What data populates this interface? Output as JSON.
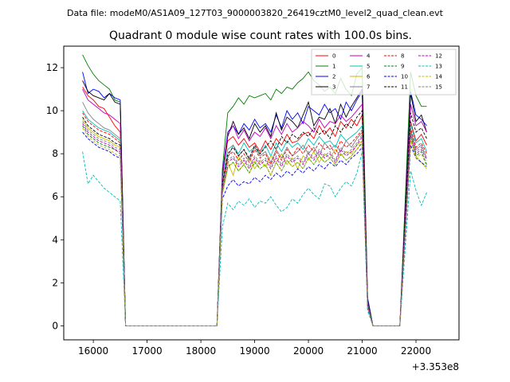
{
  "chart_data": {
    "type": "line",
    "suptitle": "Data file: modeM0/AS1A09_127T03_9000003820_26419cztM0_level2_quad_clean.evt",
    "title": "Quadrant 0 module wise count rates with 100.0s bins.",
    "xlabel": "",
    "ylabel": "",
    "x_offset_label": "+3.353e8",
    "xlim": [
      15450,
      22800
    ],
    "ylim": [
      -0.65,
      13.0
    ],
    "xticks": [
      16000,
      17000,
      18000,
      19000,
      20000,
      21000,
      22000
    ],
    "xtick_labels": [
      "16000",
      "17000",
      "18000",
      "19000",
      "20000",
      "21000",
      "22000"
    ],
    "yticks": [
      0,
      2,
      4,
      6,
      8,
      10,
      12
    ],
    "ytick_labels": [
      "0",
      "2",
      "4",
      "6",
      "8",
      "10",
      "12"
    ],
    "grid": false,
    "legend_location": "top-right",
    "segments": [
      {
        "x_start": 15800,
        "step": 100,
        "count": 8
      },
      {
        "x_start": 16600,
        "step": 100,
        "count": 1
      },
      {
        "x_start": 16700,
        "step": 100,
        "count": 17
      },
      {
        "x_start": 18400,
        "step": 100,
        "count": 27
      },
      {
        "x_start": 21100,
        "step": 100,
        "count": 7
      },
      {
        "x_start": 21900,
        "step": 100,
        "count": 1
      },
      {
        "x_start": 22000,
        "step": 100,
        "count": 3
      }
    ],
    "series": [
      {
        "name": "0",
        "color": "#ff0000",
        "dash": "solid",
        "values": [
          11.1,
          10.7,
          10.5,
          10.2,
          10.1,
          9.7,
          9.3,
          9.0,
          0.0,
          0.0,
          0.0,
          0.0,
          0.0,
          0.0,
          0.0,
          0.0,
          0.0,
          0.0,
          0.0,
          0.0,
          0.0,
          0.0,
          0.0,
          0.0,
          0.0,
          0.0,
          7.0,
          8.6,
          8.8,
          8.4,
          8.7,
          8.3,
          8.5,
          8.1,
          8.6,
          8.2,
          8.7,
          8.4,
          8.9,
          8.5,
          8.6,
          8.9,
          9.0,
          8.7,
          9.3,
          8.9,
          9.2,
          8.8,
          9.5,
          9.2,
          9.6,
          9.3,
          9.8,
          1.0,
          0.0,
          0.0,
          0.0,
          0.0,
          0.0,
          0.0,
          9.5,
          8.6,
          8.9,
          8.4
        ]
      },
      {
        "name": "1",
        "color": "#008000",
        "dash": "solid",
        "values": [
          12.6,
          12.1,
          11.7,
          11.4,
          11.2,
          11.0,
          10.5,
          10.4,
          0.0,
          0.0,
          0.0,
          0.0,
          0.0,
          0.0,
          0.0,
          0.0,
          0.0,
          0.0,
          0.0,
          0.0,
          0.0,
          0.0,
          0.0,
          0.0,
          0.0,
          0.0,
          7.3,
          9.9,
          10.2,
          10.6,
          10.3,
          10.7,
          10.6,
          10.7,
          10.8,
          10.5,
          11.0,
          10.8,
          11.1,
          11.0,
          11.3,
          11.5,
          11.8,
          11.4,
          11.2,
          10.9,
          11.1,
          10.8,
          11.5,
          11.0,
          10.7,
          11.7,
          12.0,
          1.3,
          0.0,
          0.0,
          0.0,
          0.0,
          0.0,
          0.0,
          11.8,
          10.7,
          10.2,
          10.2
        ]
      },
      {
        "name": "2",
        "color": "#0000ff",
        "dash": "solid",
        "values": [
          11.8,
          10.8,
          11.0,
          10.9,
          10.6,
          10.8,
          10.6,
          10.5,
          0.0,
          0.0,
          0.0,
          0.0,
          0.0,
          0.0,
          0.0,
          0.0,
          0.0,
          0.0,
          0.0,
          0.0,
          0.0,
          0.0,
          0.0,
          0.0,
          0.0,
          0.0,
          7.1,
          9.0,
          9.3,
          8.9,
          9.4,
          9.1,
          9.6,
          9.2,
          9.4,
          9.0,
          9.8,
          9.2,
          10.0,
          9.6,
          9.9,
          9.4,
          10.2,
          10.0,
          9.8,
          10.3,
          9.9,
          10.1,
          9.6,
          10.4,
          10.0,
          10.5,
          10.9,
          1.3,
          0.0,
          0.0,
          0.0,
          0.0,
          0.0,
          0.0,
          10.9,
          9.8,
          9.6,
          9.3
        ]
      },
      {
        "name": "3",
        "color": "#000000",
        "dash": "solid",
        "values": [
          11.4,
          10.9,
          10.7,
          10.6,
          10.5,
          10.8,
          10.4,
          10.3,
          0.0,
          0.0,
          0.0,
          0.0,
          0.0,
          0.0,
          0.0,
          0.0,
          0.0,
          0.0,
          0.0,
          0.0,
          0.0,
          0.0,
          0.0,
          0.0,
          0.0,
          0.0,
          6.9,
          8.8,
          9.5,
          8.9,
          9.2,
          8.7,
          9.4,
          9.0,
          9.3,
          8.8,
          9.9,
          9.1,
          9.7,
          9.5,
          9.2,
          9.8,
          10.4,
          9.3,
          9.7,
          9.6,
          10.1,
          9.4,
          10.3,
          9.7,
          10.2,
          10.6,
          11.0,
          1.2,
          0.0,
          0.0,
          0.0,
          0.0,
          0.0,
          0.0,
          10.8,
          9.5,
          9.8,
          9.0
        ]
      },
      {
        "name": "4",
        "color": "#bf00bf",
        "dash": "solid",
        "values": [
          11.0,
          10.5,
          10.3,
          10.1,
          9.9,
          9.8,
          9.6,
          9.4,
          0.0,
          0.0,
          0.0,
          0.0,
          0.0,
          0.0,
          0.0,
          0.0,
          0.0,
          0.0,
          0.0,
          0.0,
          0.0,
          0.0,
          0.0,
          0.0,
          0.0,
          0.0,
          7.0,
          8.9,
          9.3,
          8.7,
          9.1,
          8.6,
          9.0,
          8.8,
          9.2,
          8.7,
          9.3,
          8.9,
          9.4,
          9.0,
          9.2,
          9.5,
          9.3,
          9.0,
          9.6,
          9.2,
          9.5,
          9.4,
          9.8,
          9.5,
          9.7,
          10.0,
          10.3,
          1.1,
          0.0,
          0.0,
          0.0,
          0.0,
          0.0,
          0.0,
          10.3,
          9.3,
          9.5,
          9.0
        ]
      },
      {
        "name": "5",
        "color": "#00bfbf",
        "dash": "solid",
        "values": [
          10.0,
          9.6,
          9.4,
          9.2,
          9.1,
          9.0,
          8.8,
          8.6,
          0.0,
          0.0,
          0.0,
          0.0,
          0.0,
          0.0,
          0.0,
          0.0,
          0.0,
          0.0,
          0.0,
          0.0,
          0.0,
          0.0,
          0.0,
          0.0,
          0.0,
          0.0,
          6.6,
          8.2,
          8.4,
          8.0,
          8.5,
          8.1,
          8.3,
          8.0,
          8.4,
          7.9,
          8.5,
          8.1,
          8.6,
          8.3,
          8.5,
          8.2,
          8.7,
          8.4,
          8.8,
          8.5,
          8.6,
          8.3,
          8.9,
          8.6,
          8.8,
          9.0,
          9.3,
          1.0,
          0.0,
          0.0,
          0.0,
          0.0,
          0.0,
          0.0,
          9.4,
          8.5,
          8.7,
          8.1
        ]
      },
      {
        "name": "6",
        "color": "#bfbf00",
        "dash": "solid",
        "values": [
          9.6,
          9.2,
          9.0,
          8.8,
          8.7,
          8.6,
          8.4,
          8.3,
          0.0,
          0.0,
          0.0,
          0.0,
          0.0,
          0.0,
          0.0,
          0.0,
          0.0,
          0.0,
          0.0,
          0.0,
          0.0,
          0.0,
          0.0,
          0.0,
          0.0,
          0.0,
          6.3,
          7.6,
          7.0,
          7.9,
          7.5,
          7.8,
          7.3,
          7.7,
          7.4,
          7.9,
          7.6,
          8.0,
          7.5,
          7.8,
          7.3,
          7.9,
          7.7,
          8.1,
          7.6,
          8.0,
          7.8,
          8.2,
          7.9,
          8.1,
          8.0,
          8.4,
          8.6,
          0.9,
          0.0,
          0.0,
          0.0,
          0.0,
          0.0,
          0.0,
          8.6,
          7.9,
          7.6,
          7.3
        ]
      },
      {
        "name": "7",
        "color": "#808080",
        "dash": "solid",
        "values": [
          10.4,
          9.9,
          9.6,
          9.4,
          9.2,
          9.1,
          8.9,
          8.7,
          0.0,
          0.0,
          0.0,
          0.0,
          0.0,
          0.0,
          0.0,
          0.0,
          0.0,
          0.0,
          0.0,
          0.0,
          0.0,
          0.0,
          0.0,
          0.0,
          0.0,
          0.0,
          6.7,
          7.8,
          8.4,
          7.9,
          8.2,
          7.7,
          8.3,
          7.9,
          8.1,
          7.6,
          8.2,
          7.8,
          8.3,
          7.9,
          8.1,
          8.4,
          8.0,
          8.3,
          7.9,
          8.5,
          8.2,
          8.4,
          8.1,
          8.6,
          8.3,
          8.7,
          9.0,
          0.9,
          0.0,
          0.0,
          0.0,
          0.0,
          0.0,
          0.0,
          9.1,
          8.2,
          8.4,
          7.8
        ]
      },
      {
        "name": "8",
        "color": "#ff0000",
        "dash": "dashed",
        "values": [
          9.9,
          9.5,
          9.3,
          9.1,
          9.0,
          8.9,
          8.7,
          8.5,
          0.0,
          0.0,
          0.0,
          0.0,
          0.0,
          0.0,
          0.0,
          0.0,
          0.0,
          0.0,
          0.0,
          0.0,
          0.0,
          0.0,
          0.0,
          0.0,
          0.0,
          0.0,
          6.5,
          7.9,
          8.1,
          7.7,
          8.0,
          7.6,
          8.2,
          7.8,
          8.0,
          7.5,
          8.1,
          7.7,
          8.2,
          7.9,
          8.3,
          8.0,
          8.4,
          8.1,
          8.5,
          8.2,
          8.4,
          8.0,
          8.6,
          8.3,
          8.5,
          8.8,
          9.1,
          0.9,
          0.0,
          0.0,
          0.0,
          0.0,
          0.0,
          0.0,
          9.2,
          8.3,
          8.5,
          8.0
        ]
      },
      {
        "name": "9",
        "color": "#008000",
        "dash": "dashed",
        "values": [
          9.3,
          8.9,
          8.7,
          8.5,
          8.4,
          8.3,
          8.2,
          8.0,
          0.0,
          0.0,
          0.0,
          0.0,
          0.0,
          0.0,
          0.0,
          0.0,
          0.0,
          0.0,
          0.0,
          0.0,
          0.0,
          0.0,
          0.0,
          0.0,
          0.0,
          0.0,
          6.2,
          7.4,
          7.6,
          7.2,
          7.5,
          7.1,
          7.6,
          7.3,
          7.5,
          7.0,
          7.6,
          7.2,
          7.7,
          7.4,
          7.6,
          7.3,
          7.8,
          7.5,
          7.9,
          7.6,
          7.8,
          7.5,
          8.0,
          7.7,
          7.9,
          8.2,
          8.5,
          0.9,
          0.0,
          0.0,
          0.0,
          0.0,
          0.0,
          0.0,
          8.8,
          7.9,
          8.1,
          7.5
        ]
      },
      {
        "name": "10",
        "color": "#0000ff",
        "dash": "dashed",
        "values": [
          9.0,
          8.7,
          8.5,
          8.3,
          8.2,
          8.1,
          7.9,
          7.8,
          0.0,
          0.0,
          0.0,
          0.0,
          0.0,
          0.0,
          0.0,
          0.0,
          0.0,
          0.0,
          0.0,
          0.0,
          0.0,
          0.0,
          0.0,
          0.0,
          0.0,
          0.0,
          5.9,
          6.5,
          6.8,
          6.5,
          6.7,
          6.6,
          6.9,
          6.7,
          7.0,
          6.8,
          7.1,
          6.9,
          7.2,
          7.0,
          7.3,
          7.1,
          7.4,
          7.2,
          7.5,
          7.3,
          7.6,
          7.4,
          7.7,
          7.5,
          7.8,
          8.0,
          8.3,
          0.8,
          0.0,
          0.0,
          0.0,
          0.0,
          0.0,
          0.0,
          8.4,
          7.8,
          7.6,
          7.4
        ]
      },
      {
        "name": "11",
        "color": "#000000",
        "dash": "dashed",
        "values": [
          9.7,
          9.3,
          9.1,
          8.9,
          8.8,
          8.7,
          8.5,
          8.4,
          0.0,
          0.0,
          0.0,
          0.0,
          0.0,
          0.0,
          0.0,
          0.0,
          0.0,
          0.0,
          0.0,
          0.0,
          0.0,
          0.0,
          0.0,
          0.0,
          0.0,
          0.0,
          6.6,
          8.0,
          8.3,
          7.9,
          8.2,
          7.8,
          8.4,
          8.0,
          8.3,
          8.6,
          8.2,
          8.8,
          8.5,
          8.9,
          8.7,
          9.0,
          8.8,
          9.2,
          8.9,
          9.1,
          8.7,
          9.3,
          9.0,
          9.4,
          9.2,
          9.7,
          10.0,
          1.0,
          0.0,
          0.0,
          0.0,
          0.0,
          0.0,
          0.0,
          9.9,
          9.0,
          9.2,
          8.7
        ]
      },
      {
        "name": "12",
        "color": "#bf00bf",
        "dash": "dashed",
        "values": [
          9.4,
          9.0,
          8.8,
          8.6,
          8.5,
          8.4,
          8.2,
          8.1,
          0.0,
          0.0,
          0.0,
          0.0,
          0.0,
          0.0,
          0.0,
          0.0,
          0.0,
          0.0,
          0.0,
          0.0,
          0.0,
          0.0,
          0.0,
          0.0,
          0.0,
          0.0,
          6.3,
          7.6,
          7.8,
          7.4,
          7.7,
          7.3,
          7.8,
          7.5,
          7.7,
          7.3,
          7.8,
          7.4,
          7.9,
          7.6,
          7.8,
          7.5,
          8.0,
          7.7,
          8.1,
          7.8,
          8.0,
          7.6,
          8.2,
          7.9,
          8.1,
          8.4,
          8.8,
          0.9,
          0.0,
          0.0,
          0.0,
          0.0,
          0.0,
          0.0,
          8.9,
          8.0,
          8.2,
          7.7
        ]
      },
      {
        "name": "13",
        "color": "#00bfbf",
        "dash": "dashed",
        "values": [
          8.1,
          6.6,
          7.0,
          6.7,
          6.4,
          6.2,
          6.0,
          5.8,
          0.0,
          0.0,
          0.0,
          0.0,
          0.0,
          0.0,
          0.0,
          0.0,
          0.0,
          0.0,
          0.0,
          0.0,
          0.0,
          0.0,
          0.0,
          0.0,
          0.0,
          0.0,
          4.6,
          5.7,
          5.4,
          5.8,
          5.6,
          5.9,
          5.5,
          5.8,
          5.7,
          6.0,
          5.6,
          5.3,
          5.5,
          5.9,
          5.7,
          6.1,
          6.4,
          6.1,
          5.9,
          6.6,
          6.5,
          6.0,
          6.4,
          6.7,
          6.5,
          7.1,
          8.1,
          0.7,
          0.0,
          0.0,
          0.0,
          0.0,
          0.0,
          0.0,
          7.2,
          6.3,
          5.6,
          6.2
        ]
      },
      {
        "name": "14",
        "color": "#bfbf00",
        "dash": "dashed",
        "values": [
          9.2,
          8.8,
          8.6,
          8.4,
          8.3,
          8.2,
          8.0,
          7.9,
          0.0,
          0.0,
          0.0,
          0.0,
          0.0,
          0.0,
          0.0,
          0.0,
          0.0,
          0.0,
          0.0,
          0.0,
          0.0,
          0.0,
          0.0,
          0.0,
          0.0,
          0.0,
          6.1,
          7.3,
          7.6,
          7.2,
          7.5,
          7.1,
          7.7,
          7.3,
          7.5,
          7.0,
          7.6,
          7.2,
          7.7,
          7.4,
          7.6,
          7.3,
          7.8,
          7.5,
          7.9,
          7.6,
          7.8,
          7.5,
          8.0,
          7.7,
          7.9,
          8.2,
          8.6,
          0.9,
          0.0,
          0.0,
          0.0,
          0.0,
          0.0,
          0.0,
          8.7,
          7.8,
          8.0,
          7.4
        ]
      },
      {
        "name": "15",
        "color": "#808080",
        "dash": "dashed",
        "values": [
          9.5,
          9.1,
          8.9,
          8.7,
          8.6,
          8.5,
          8.3,
          8.2,
          0.0,
          0.0,
          0.0,
          0.0,
          0.0,
          0.0,
          0.0,
          0.0,
          0.0,
          0.0,
          0.0,
          0.0,
          0.0,
          0.0,
          0.0,
          0.0,
          0.0,
          0.0,
          6.4,
          7.7,
          7.9,
          7.5,
          7.8,
          7.4,
          7.9,
          7.6,
          7.8,
          7.4,
          7.9,
          7.5,
          8.0,
          7.7,
          7.9,
          7.6,
          8.1,
          7.8,
          8.2,
          7.9,
          8.1,
          7.7,
          8.3,
          8.0,
          8.2,
          8.5,
          8.9,
          0.9,
          0.0,
          0.0,
          0.0,
          0.0,
          0.0,
          0.0,
          9.0,
          8.1,
          8.3,
          7.8
        ]
      }
    ]
  }
}
